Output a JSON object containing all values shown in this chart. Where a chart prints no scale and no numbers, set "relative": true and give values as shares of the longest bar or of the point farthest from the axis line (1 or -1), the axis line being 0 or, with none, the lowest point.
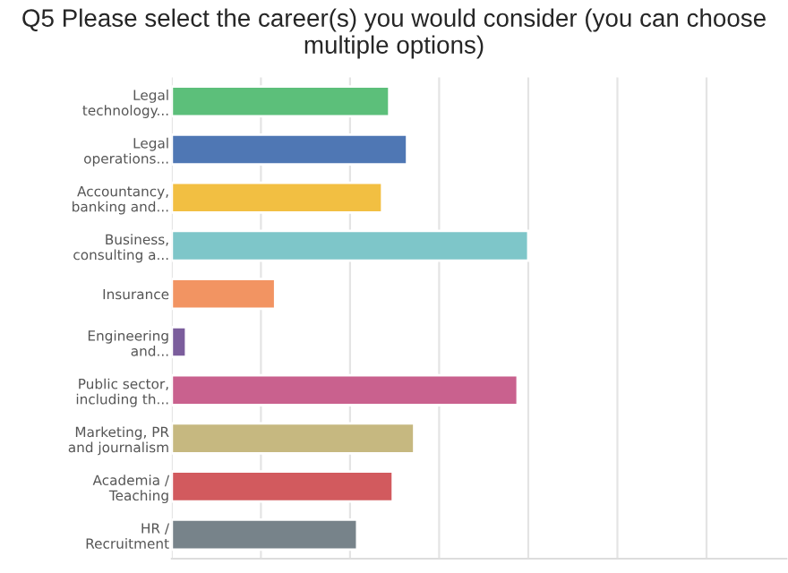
{
  "chart_data": {
    "type": "bar",
    "orientation": "horizontal",
    "relative": true,
    "grid": "x",
    "title": "Q5 Please select the career(s) you would consider (you can choose multiple options)",
    "categories": [
      "Legal\ntechnology...",
      "Legal\noperations...",
      "Accountancy,\nbanking and...",
      "Business,\nconsulting a...",
      "Insurance",
      "Engineering\nand...",
      "Public sector,\nincluding th...",
      "Marketing, PR\nand journalism",
      "Academia /\nTeaching",
      "HR /\nRecruitment"
    ],
    "values": [
      0.61,
      0.66,
      0.59,
      1,
      0.29,
      0.04,
      0.97,
      0.68,
      0.62,
      0.52
    ],
    "colors": [
      "#5cbf7a",
      "#4f77b4",
      "#f2bf42",
      "#7ec6c9",
      "#f29462",
      "#7b5d9c",
      "#c9618e",
      "#c6b880",
      "#d25a5e",
      "#77838a"
    ]
  }
}
